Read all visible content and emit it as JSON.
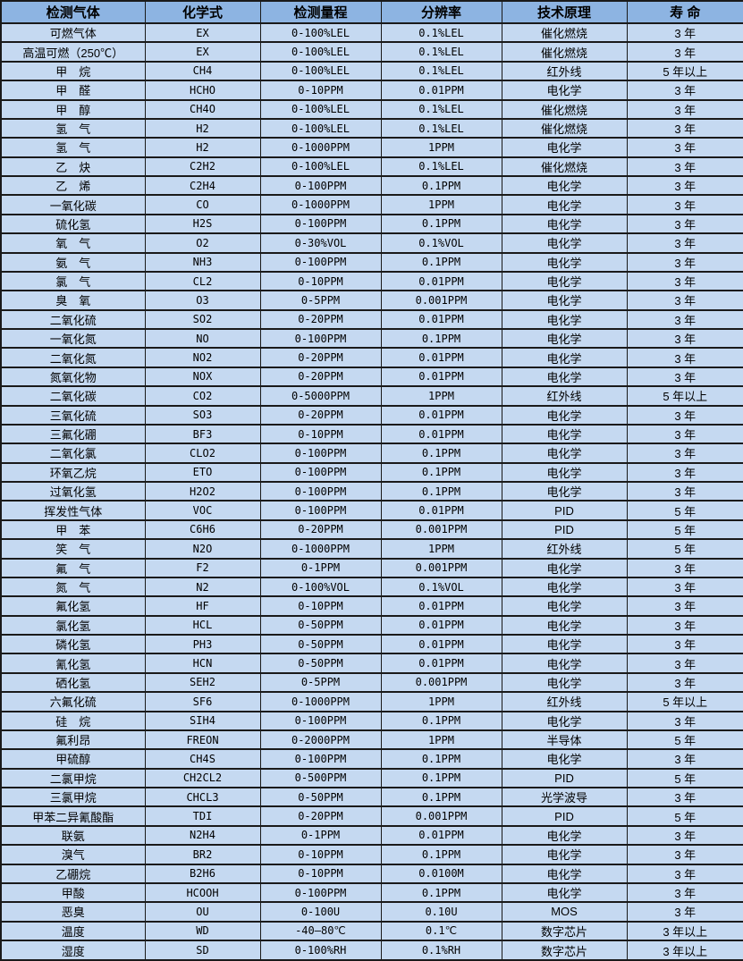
{
  "table": {
    "name": "gas-sensor-specification-table",
    "colors": {
      "header_bg": "#8db4e2",
      "row_bg": "#c5d9f1",
      "border": "#1a1a1a",
      "text": "#000000"
    },
    "headers": [
      "检测气体",
      "化学式",
      "检测量程",
      "分辨率",
      "技术原理",
      "寿  命"
    ],
    "column_keys": [
      "gas",
      "formula",
      "range",
      "resolution",
      "principle",
      "lifespan"
    ],
    "rows": [
      [
        "可燃气体",
        "EX",
        "0-100%LEL",
        "0.1%LEL",
        "催化燃烧",
        "3 年"
      ],
      [
        "高温可燃（250℃）",
        "EX",
        "0-100%LEL",
        "0.1%LEL",
        "催化燃烧",
        "3 年"
      ],
      [
        "甲　烷",
        "CH4",
        "0-100%LEL",
        "0.1%LEL",
        "红外线",
        "5 年以上"
      ],
      [
        "甲　醛",
        "HCHO",
        "0-10PPM",
        "0.01PPM",
        "电化学",
        "3 年"
      ],
      [
        "甲　醇",
        "CH4O",
        "0-100%LEL",
        "0.1%LEL",
        "催化燃烧",
        "3 年"
      ],
      [
        "氢　气",
        "H2",
        "0-100%LEL",
        "0.1%LEL",
        "催化燃烧",
        "3 年"
      ],
      [
        "氢　气",
        "H2",
        "0-1000PPM",
        "1PPM",
        "电化学",
        "3 年"
      ],
      [
        "乙　炔",
        "C2H2",
        "0-100%LEL",
        "0.1%LEL",
        "催化燃烧",
        "3 年"
      ],
      [
        "乙　烯",
        "C2H4",
        "0-100PPM",
        "0.1PPM",
        "电化学",
        "3 年"
      ],
      [
        "一氧化碳",
        "CO",
        "0-1000PPM",
        "1PPM",
        "电化学",
        "3 年"
      ],
      [
        "硫化氢",
        "H2S",
        "0-100PPM",
        "0.1PPM",
        "电化学",
        "3 年"
      ],
      [
        "氧　气",
        "O2",
        "0-30%VOL",
        "0.1%VOL",
        "电化学",
        "3 年"
      ],
      [
        "氨　气",
        "NH3",
        "0-100PPM",
        "0.1PPM",
        "电化学",
        "3 年"
      ],
      [
        "氯　气",
        "CL2",
        "0-10PPM",
        "0.01PPM",
        "电化学",
        "3 年"
      ],
      [
        "臭　氧",
        "O3",
        "0-5PPM",
        "0.001PPM",
        "电化学",
        "3 年"
      ],
      [
        "二氧化硫",
        "SO2",
        "0-20PPM",
        "0.01PPM",
        "电化学",
        "3 年"
      ],
      [
        "一氧化氮",
        "NO",
        "0-100PPM",
        "0.1PPM",
        "电化学",
        "3 年"
      ],
      [
        "二氧化氮",
        "NO2",
        "0-20PPM",
        "0.01PPM",
        "电化学",
        "3 年"
      ],
      [
        "氮氧化物",
        "NOX",
        "0-20PPM",
        "0.01PPM",
        "电化学",
        "3 年"
      ],
      [
        "二氧化碳",
        "CO2",
        "0-5000PPM",
        "1PPM",
        "红外线",
        "5 年以上"
      ],
      [
        "三氧化硫",
        "SO3",
        "0-20PPM",
        "0.01PPM",
        "电化学",
        "3 年"
      ],
      [
        "三氟化硼",
        "BF3",
        "0-10PPM",
        "0.01PPM",
        "电化学",
        "3 年"
      ],
      [
        "二氧化氯",
        "CLO2",
        "0-100PPM",
        "0.1PPM",
        "电化学",
        "3 年"
      ],
      [
        "环氧乙烷",
        "ETO",
        "0-100PPM",
        "0.1PPM",
        "电化学",
        "3 年"
      ],
      [
        "过氧化氢",
        "H2O2",
        "0-100PPM",
        "0.1PPM",
        "电化学",
        "3 年"
      ],
      [
        "挥发性气体",
        "VOC",
        "0-100PPM",
        "0.01PPM",
        "PID",
        "5 年"
      ],
      [
        "甲　苯",
        "C6H6",
        "0-20PPM",
        "0.001PPM",
        "PID",
        "5 年"
      ],
      [
        "笑　气",
        "N2O",
        "0-1000PPM",
        "1PPM",
        "红外线",
        "5 年"
      ],
      [
        "氟　气",
        "F2",
        "0-1PPM",
        "0.001PPM",
        "电化学",
        "3 年"
      ],
      [
        "氮　气",
        "N2",
        "0-100%VOL",
        "0.1%VOL",
        "电化学",
        "3 年"
      ],
      [
        "氟化氢",
        "HF",
        "0-10PPM",
        "0.01PPM",
        "电化学",
        "3 年"
      ],
      [
        "氯化氢",
        "HCL",
        "0-50PPM",
        "0.01PPM",
        "电化学",
        "3 年"
      ],
      [
        "磷化氢",
        "PH3",
        "0-50PPM",
        "0.01PPM",
        "电化学",
        "3 年"
      ],
      [
        "氰化氢",
        "HCN",
        "0-50PPM",
        "0.01PPM",
        "电化学",
        "3 年"
      ],
      [
        "硒化氢",
        "SEH2",
        "0-5PPM",
        "0.001PPM",
        "电化学",
        "3 年"
      ],
      [
        "六氟化硫",
        "SF6",
        "0-1000PPM",
        "1PPM",
        "红外线",
        "5 年以上"
      ],
      [
        "硅　烷",
        "SIH4",
        "0-100PPM",
        "0.1PPM",
        "电化学",
        "3 年"
      ],
      [
        "氟利昂",
        "FREON",
        "0-2000PPM",
        "1PPM",
        "半导体",
        "5 年"
      ],
      [
        "甲硫醇",
        "CH4S",
        "0-100PPM",
        "0.1PPM",
        "电化学",
        "3 年"
      ],
      [
        "二氯甲烷",
        "CH2CL2",
        "0-500PPM",
        "0.1PPM",
        "PID",
        "5 年"
      ],
      [
        "三氯甲烷",
        "CHCL3",
        "0-50PPM",
        "0.1PPM",
        "光学波导",
        "3 年"
      ],
      [
        "甲苯二异氰酸酯",
        "TDI",
        "0-20PPM",
        "0.001PPM",
        "PID",
        "5 年"
      ],
      [
        "联氨",
        "N2H4",
        "0-1PPM",
        "0.01PPM",
        "电化学",
        "3 年"
      ],
      [
        "溴气",
        "BR2",
        "0-10PPM",
        "0.1PPM",
        "电化学",
        "3 年"
      ],
      [
        "乙硼烷",
        "B2H6",
        "0-10PPM",
        "0.0100M",
        "电化学",
        "3 年"
      ],
      [
        "甲酸",
        "HCOOH",
        "0-100PPM",
        "0.1PPM",
        "电化学",
        "3 年"
      ],
      [
        "恶臭",
        "OU",
        "0-100U",
        "0.10U",
        "MOS",
        "3 年"
      ],
      [
        "温度",
        "WD",
        "-40—80℃",
        "0.1℃",
        "数字芯片",
        "3 年以上"
      ],
      [
        "湿度",
        "SD",
        "0-100%RH",
        "0.1%RH",
        "数字芯片",
        "3 年以上"
      ]
    ]
  }
}
